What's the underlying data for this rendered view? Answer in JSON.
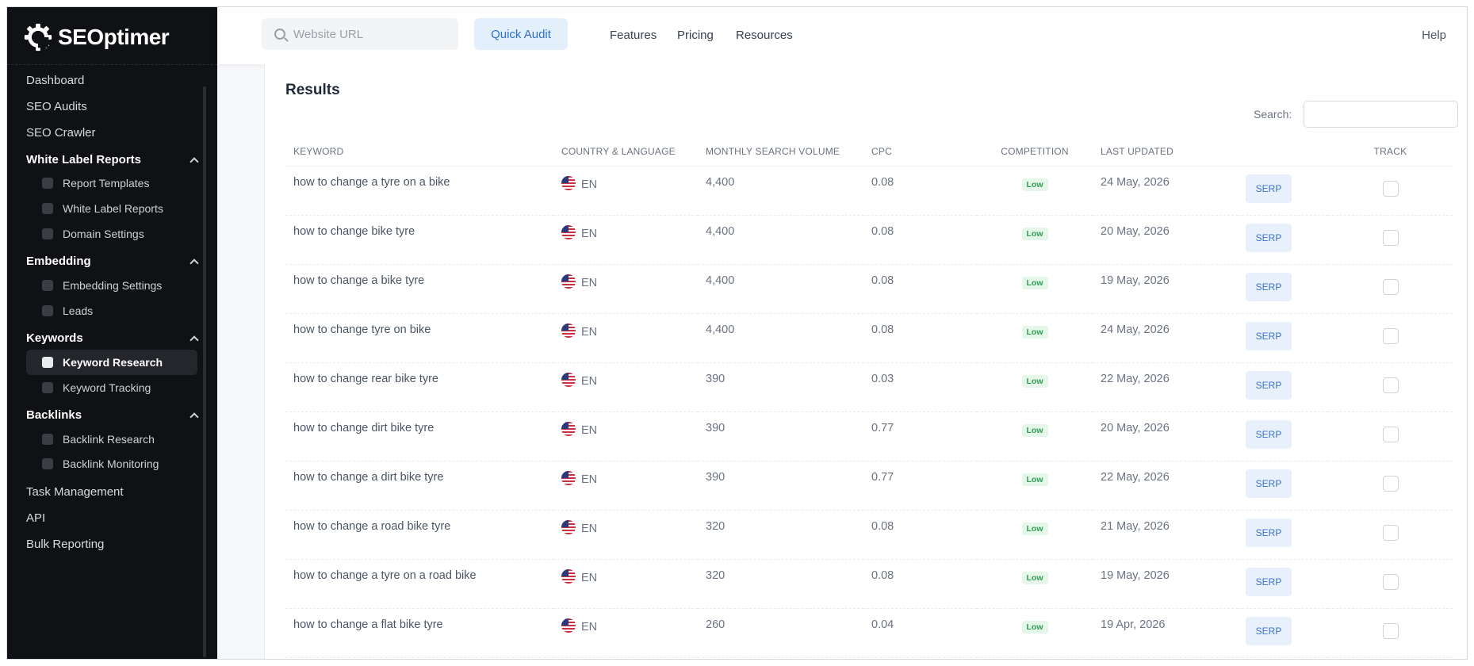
{
  "brand": {
    "name": "SEOptimer"
  },
  "header": {
    "search_placeholder": "Website URL",
    "quick_audit_label": "Quick Audit",
    "links": [
      "Features",
      "Pricing",
      "Resources"
    ],
    "help_label": "Help"
  },
  "sidebar": {
    "top_items": [
      "Dashboard",
      "SEO Audits",
      "SEO Crawler"
    ],
    "white_label": {
      "title": "White Label Reports",
      "items": [
        "Report Templates",
        "White Label Reports",
        "Domain Settings"
      ]
    },
    "embedding": {
      "title": "Embedding",
      "items": [
        "Embedding Settings",
        "Leads"
      ]
    },
    "keywords": {
      "title": "Keywords",
      "items": [
        "Keyword Research",
        "Keyword Tracking"
      ]
    },
    "backlinks": {
      "title": "Backlinks",
      "items": [
        "Backlink Research",
        "Backlink Monitoring"
      ]
    },
    "bottom_items": [
      "Task Management",
      "API",
      "Bulk Reporting"
    ]
  },
  "results": {
    "title": "Results",
    "search_label": "Search:",
    "columns": [
      "KEYWORD",
      "COUNTRY & LANGUAGE",
      "MONTHLY SEARCH VOLUME",
      "CPC",
      "COMPETITION",
      "LAST UPDATED",
      "",
      "TRACK"
    ],
    "serp_label": "SERP",
    "rows": [
      {
        "keyword": "how to change a tyre on a bike",
        "lang": "EN",
        "volume": "4,400",
        "cpc": "0.08",
        "competition": "Low",
        "updated": "24 May, 2026"
      },
      {
        "keyword": "how to change bike tyre",
        "lang": "EN",
        "volume": "4,400",
        "cpc": "0.08",
        "competition": "Low",
        "updated": "20 May, 2026"
      },
      {
        "keyword": "how to change a bike tyre",
        "lang": "EN",
        "volume": "4,400",
        "cpc": "0.08",
        "competition": "Low",
        "updated": "19 May, 2026"
      },
      {
        "keyword": "how to change tyre on bike",
        "lang": "EN",
        "volume": "4,400",
        "cpc": "0.08",
        "competition": "Low",
        "updated": "24 May, 2026"
      },
      {
        "keyword": "how to change rear bike tyre",
        "lang": "EN",
        "volume": "390",
        "cpc": "0.03",
        "competition": "Low",
        "updated": "22 May, 2026"
      },
      {
        "keyword": "how to change dirt bike tyre",
        "lang": "EN",
        "volume": "390",
        "cpc": "0.77",
        "competition": "Low",
        "updated": "20 May, 2026"
      },
      {
        "keyword": "how to change a dirt bike tyre",
        "lang": "EN",
        "volume": "390",
        "cpc": "0.77",
        "competition": "Low",
        "updated": "22 May, 2026"
      },
      {
        "keyword": "how to change a road bike tyre",
        "lang": "EN",
        "volume": "320",
        "cpc": "0.08",
        "competition": "Low",
        "updated": "21 May, 2026"
      },
      {
        "keyword": "how to change a tyre on a road bike",
        "lang": "EN",
        "volume": "320",
        "cpc": "0.08",
        "competition": "Low",
        "updated": "19 May, 2026"
      },
      {
        "keyword": "how to change a flat bike tyre",
        "lang": "EN",
        "volume": "260",
        "cpc": "0.04",
        "competition": "Low",
        "updated": "19 Apr, 2026"
      }
    ]
  }
}
